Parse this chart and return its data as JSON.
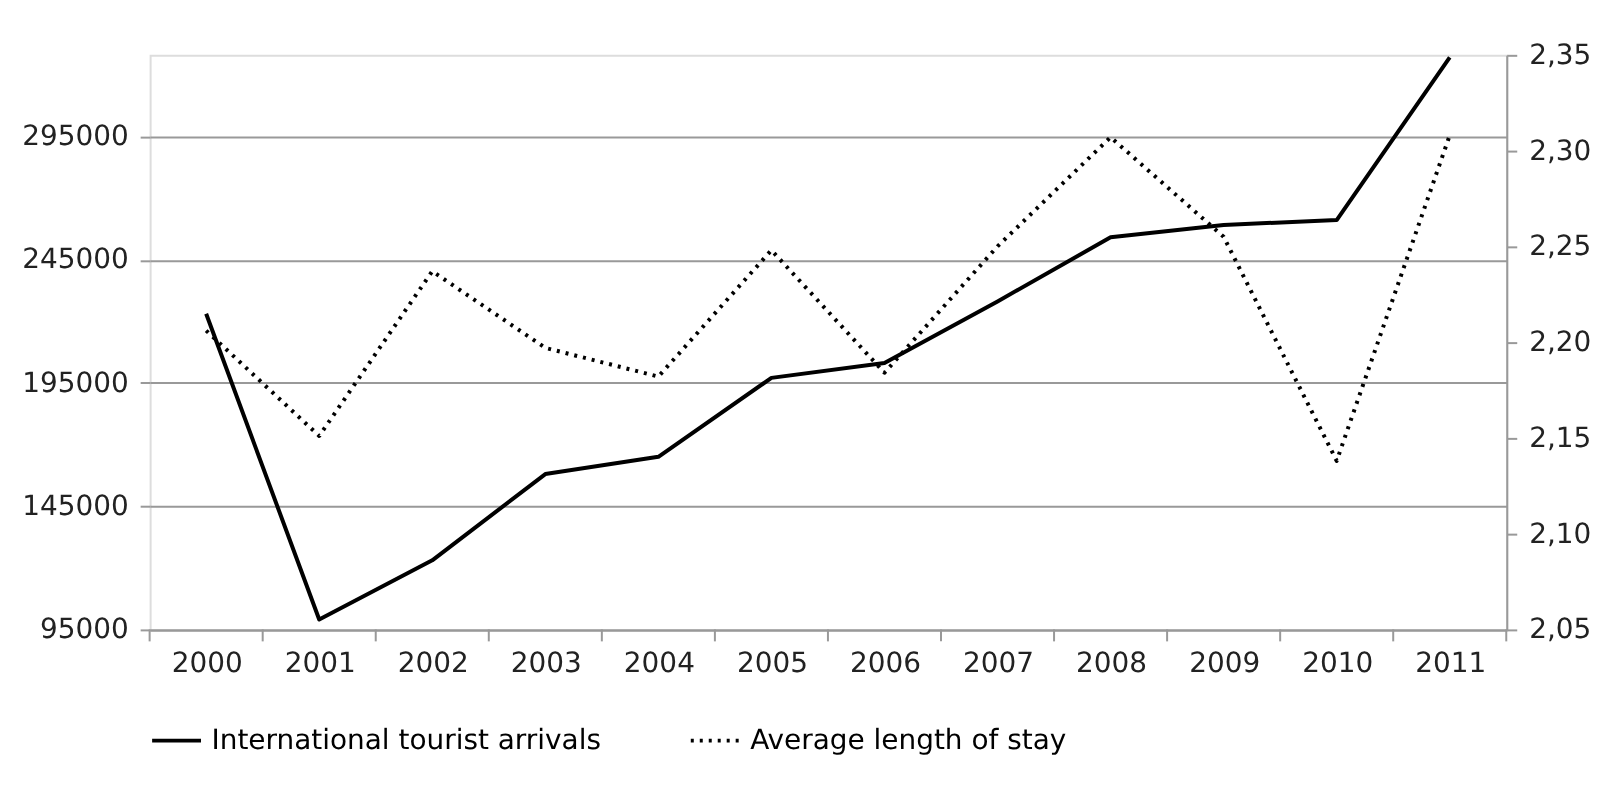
{
  "chart_data": {
    "type": "line",
    "categories": [
      "2000",
      "2001",
      "2002",
      "2003",
      "2004",
      "2005",
      "2006",
      "2007",
      "2008",
      "2009",
      "2010",
      "2011"
    ],
    "series": [
      {
        "name": "International tourist arrivals",
        "color": "#000000",
        "line_style": "solid",
        "values": [
          223000,
          99000,
          123000,
          158000,
          165000,
          197000,
          203000,
          228000,
          254000,
          259000,
          261000,
          327000
        ]
      },
      {
        "name": "Average length of stay",
        "color": "#000000",
        "line_style": "dotted",
        "axis": "y2",
        "values": [
          2.206,
          2.151,
          2.237,
          2.197,
          2.182,
          2.248,
          2.184,
          2.25,
          2.307,
          2.255,
          2.138,
          2.308
        ]
      }
    ],
    "ylim": [
      95000,
      328000
    ],
    "yticks": [
      95000,
      145000,
      195000,
      245000,
      295000
    ],
    "y2lim": [
      2.05,
      2.35
    ],
    "y2ticks": [
      {
        "value": 2.05,
        "label": "2,05"
      },
      {
        "value": 2.1,
        "label": "2,10"
      },
      {
        "value": 2.15,
        "label": "2,15"
      },
      {
        "value": 2.2,
        "label": "2,20"
      },
      {
        "value": 2.25,
        "label": "2,25"
      },
      {
        "value": 2.3,
        "label": "2,30"
      },
      {
        "value": 2.35,
        "label": "2,35"
      }
    ],
    "grid": "y",
    "legend": "bottom",
    "marker": "none"
  }
}
